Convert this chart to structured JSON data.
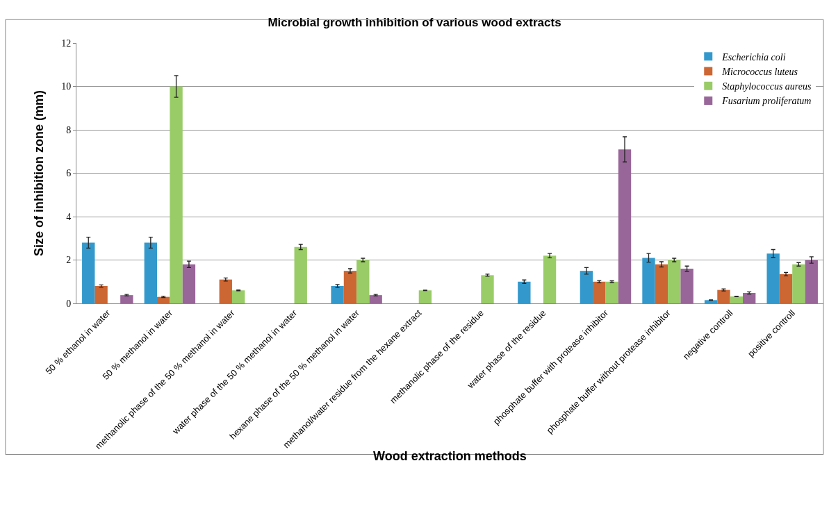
{
  "chart_data": {
    "type": "bar",
    "title": "Microbial growth inhibition of various wood extracts",
    "xlabel": "Wood extraction methods",
    "ylabel": "Size of inhibition zone (mm)",
    "categories": [
      "50 % ethanol in water",
      "50 % methanol in water",
      "methanolic phase of the 50 % methanol in water",
      "water phase of the 50 % methanol in water",
      "hexane phase of the 50 % methanol in water",
      "methanol/water residue from the hexane extract",
      "methanolic phase of the residue",
      "water phase of the residue",
      "phosphate buffer with protease inhibitor",
      "phosphate buffer without protease inhibitor",
      "negative controll",
      "positive controll"
    ],
    "series": [
      {
        "name": "Escherichia coli",
        "color": "#3399cc",
        "values": [
          2.8,
          2.8,
          null,
          null,
          0.8,
          null,
          null,
          1.0,
          1.5,
          2.1,
          0.15,
          2.3
        ],
        "errors": [
          0.25,
          0.25,
          null,
          null,
          0.07,
          null,
          null,
          0.08,
          0.15,
          0.2,
          0.01,
          0.18
        ]
      },
      {
        "name": "Micrococcus luteus",
        "color": "#cc6633",
        "values": [
          0.8,
          0.3,
          1.1,
          null,
          1.5,
          null,
          null,
          null,
          1.0,
          1.8,
          0.62,
          1.35
        ],
        "errors": [
          0.05,
          0.03,
          0.07,
          null,
          0.1,
          null,
          null,
          null,
          0.05,
          0.12,
          0.05,
          0.08
        ]
      },
      {
        "name": "Staphylococcus aureus",
        "color": "#99cc66",
        "values": [
          null,
          10,
          0.6,
          2.6,
          2.0,
          0.6,
          1.3,
          2.2,
          1.0,
          2.0,
          0.32,
          1.8
        ],
        "errors": [
          null,
          0.5,
          0.02,
          0.12,
          0.08,
          0.01,
          0.05,
          0.1,
          0.04,
          0.08,
          0.01,
          0.08
        ]
      },
      {
        "name": "Fusarium proliferatum",
        "color": "#996699",
        "values": [
          0.38,
          1.8,
          null,
          null,
          0.38,
          null,
          null,
          null,
          7.1,
          1.6,
          0.48,
          2.0
        ],
        "errors": [
          0.03,
          0.15,
          null,
          null,
          0.03,
          null,
          null,
          null,
          0.58,
          0.12,
          0.05,
          0.15
        ]
      }
    ],
    "ylim": [
      0,
      12
    ],
    "yticks": [
      0,
      2,
      4,
      6,
      8,
      10,
      12
    ],
    "grid": "y",
    "legend": "top right"
  }
}
